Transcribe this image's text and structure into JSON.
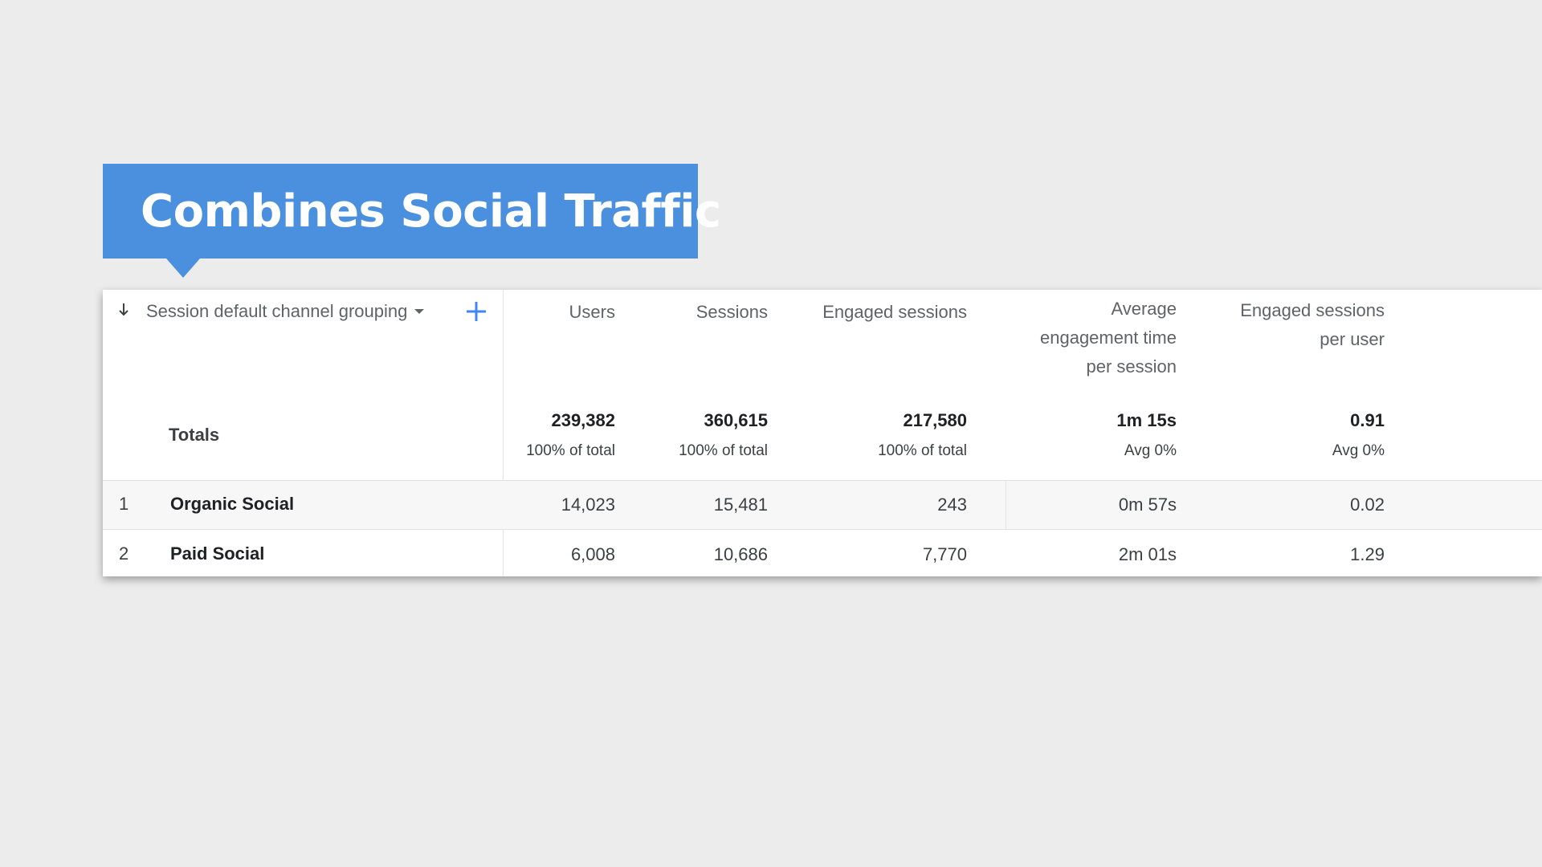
{
  "callout": {
    "text": "Combines Social Traffic"
  },
  "table": {
    "dimension_header": "Session default channel grouping",
    "columns": [
      {
        "key": "users",
        "header": "Users"
      },
      {
        "key": "sessions",
        "header": "Sessions"
      },
      {
        "key": "engaged_sessions",
        "header": "Engaged sessions"
      },
      {
        "key": "avg_engagement_time",
        "header": [
          "Average",
          "engagement time",
          "per session"
        ]
      },
      {
        "key": "engaged_per_user",
        "header": [
          "Engaged sessions",
          "per user"
        ]
      }
    ],
    "totals": {
      "label": "Totals",
      "values": [
        "239,382",
        "360,615",
        "217,580",
        "1m 15s",
        "0.91"
      ],
      "subs": [
        "100% of total",
        "100% of total",
        "100% of total",
        "Avg 0%",
        "Avg 0%"
      ]
    },
    "rows": [
      {
        "num": "1",
        "name": "Organic Social",
        "values": [
          "14,023",
          "15,481",
          "243",
          "0m 57s",
          "0.02"
        ]
      },
      {
        "num": "2",
        "name": "Paid Social",
        "values": [
          "6,008",
          "10,686",
          "7,770",
          "2m 01s",
          "1.29"
        ]
      }
    ]
  },
  "icons": {
    "sort": "arrow-down-icon",
    "dropdown": "caret-down-icon",
    "add": "plus-icon",
    "accent": "#4285f4"
  }
}
